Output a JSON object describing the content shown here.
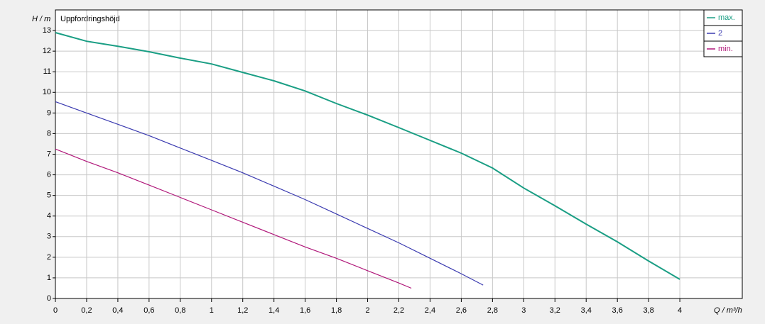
{
  "chart_data": {
    "type": "line",
    "y_label": "H / m",
    "x_label": "Q / m³/h",
    "annotation": "Uppfordringshöjd",
    "xlim": [
      0,
      4.4
    ],
    "ylim": [
      0,
      14
    ],
    "xticks": [
      0,
      {
        "value": 0.2,
        "label": "0,2"
      },
      {
        "value": 0.4,
        "label": "0,4"
      },
      {
        "value": 0.6,
        "label": "0,6"
      },
      {
        "value": 0.8,
        "label": "0,8"
      },
      1,
      {
        "value": 1.2,
        "label": "1,2"
      },
      {
        "value": 1.4,
        "label": "1,4"
      },
      {
        "value": 1.6,
        "label": "1,6"
      },
      {
        "value": 1.8,
        "label": "1,8"
      },
      2,
      {
        "value": 2.2,
        "label": "2,2"
      },
      {
        "value": 2.4,
        "label": "2,4"
      },
      {
        "value": 2.6,
        "label": "2,6"
      },
      {
        "value": 2.8,
        "label": "2,8"
      },
      3,
      {
        "value": 3.2,
        "label": "3,2"
      },
      {
        "value": 3.4,
        "label": "3,4"
      },
      {
        "value": 3.6,
        "label": "3,6"
      },
      {
        "value": 3.8,
        "label": "3,8"
      },
      4
    ],
    "yticks": [
      0,
      1,
      2,
      3,
      4,
      5,
      6,
      7,
      8,
      9,
      10,
      11,
      12,
      13
    ],
    "grid": true,
    "legend": "top-right",
    "series": [
      {
        "name": "max.",
        "color": "#1a9e84",
        "x": [
          0,
          0.2,
          0.4,
          0.6,
          0.8,
          1.0,
          1.2,
          1.4,
          1.6,
          1.8,
          2.0,
          2.2,
          2.4,
          2.6,
          2.8,
          3.0,
          3.2,
          3.4,
          3.6,
          3.8,
          4.0
        ],
        "values": [
          12.9,
          12.48,
          12.24,
          11.97,
          11.66,
          11.38,
          10.97,
          10.56,
          10.07,
          9.46,
          8.9,
          8.29,
          7.67,
          7.05,
          6.33,
          5.36,
          4.5,
          3.61,
          2.75,
          1.82,
          0.93
        ]
      },
      {
        "name": "2",
        "color": "#3a3ab0",
        "x": [
          0,
          0.2,
          0.4,
          0.6,
          0.8,
          1.0,
          1.2,
          1.4,
          1.6,
          1.8,
          2.0,
          2.2,
          2.4,
          2.6,
          2.74
        ],
        "values": [
          9.55,
          9.0,
          8.45,
          7.9,
          7.3,
          6.7,
          6.1,
          5.45,
          4.8,
          4.1,
          3.4,
          2.7,
          1.95,
          1.2,
          0.65
        ]
      },
      {
        "name": "min.",
        "color": "#b0187a",
        "x": [
          0,
          0.2,
          0.4,
          0.6,
          0.8,
          1.0,
          1.2,
          1.4,
          1.6,
          1.8,
          2.0,
          2.2,
          2.28
        ],
        "values": [
          7.25,
          6.65,
          6.1,
          5.5,
          4.9,
          4.3,
          3.7,
          3.1,
          2.5,
          1.95,
          1.35,
          0.75,
          0.5
        ]
      }
    ]
  }
}
